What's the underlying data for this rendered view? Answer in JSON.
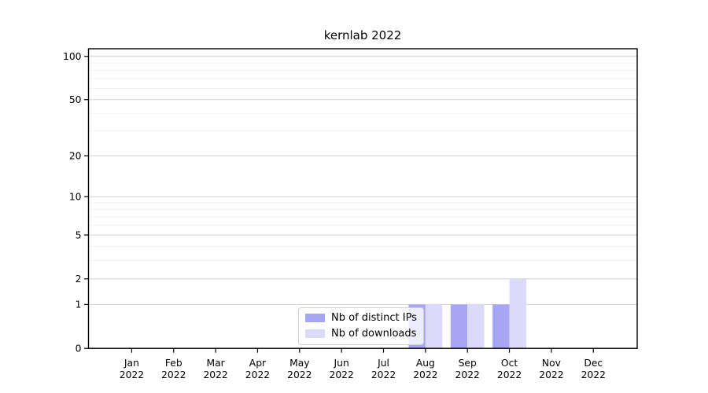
{
  "chart_data": {
    "type": "bar",
    "title": "kernlab 2022",
    "categories": [
      "Jan",
      "Feb",
      "Mar",
      "Apr",
      "May",
      "Jun",
      "Jul",
      "Aug",
      "Sep",
      "Oct",
      "Nov",
      "Dec"
    ],
    "year_label": "2022",
    "series": [
      {
        "name": "Nb of distinct IPs",
        "color": "#a6a6f4",
        "values": [
          0,
          0,
          0,
          0,
          0,
          0,
          0,
          1,
          1,
          1,
          0,
          0
        ]
      },
      {
        "name": "Nb of downloads",
        "color": "#dbdbf9",
        "values": [
          0,
          0,
          0,
          0,
          0,
          0,
          0,
          1,
          1,
          2,
          0,
          0
        ]
      }
    ],
    "xlabel": "",
    "ylabel": "",
    "yscale": "log1p",
    "ylim": [
      0,
      113
    ],
    "yticks": [
      0,
      1,
      2,
      5,
      10,
      20,
      50,
      100
    ],
    "minor_gridlines": [
      3,
      4,
      6,
      7,
      8,
      9,
      30,
      40,
      60,
      70,
      80,
      90
    ],
    "grid": true,
    "legend_position": "inside-bottom-center"
  },
  "style": {
    "axis_color": "#000000",
    "grid_major_color": "#d0d0d0",
    "grid_minor_color": "#f1f1f1",
    "text_color": "#000000"
  }
}
